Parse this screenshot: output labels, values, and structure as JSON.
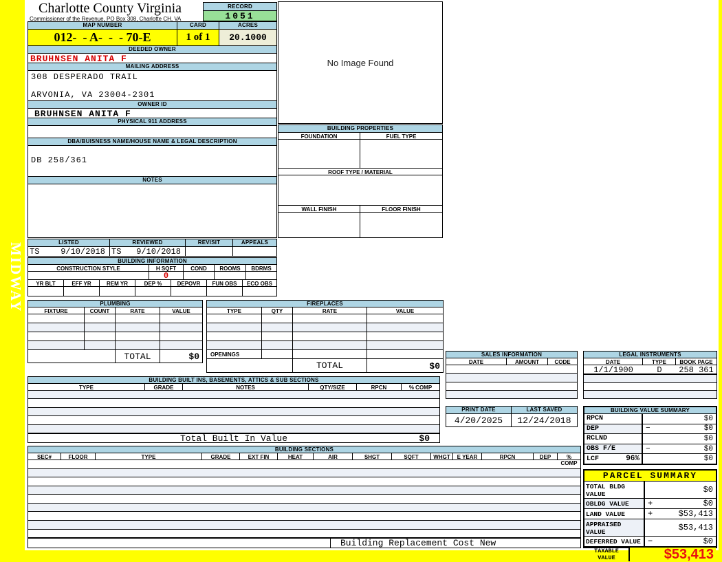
{
  "colors": {
    "header_blue": "#aed5e4",
    "record_green": "#98e098",
    "highlight_yellow": "#ffff00",
    "acres_cream": "#eeeed8",
    "alt_row": "#edf1f7",
    "owner_red": "#d40000",
    "taxable_red": "#e81111"
  },
  "page": {
    "watermark": "MIDWAY"
  },
  "header": {
    "county": "Charlotte County Virginia",
    "subtitle": "Commissioner of the Revenue, PO Box 308, Charlotte CH, VA",
    "record_label": "RECORD",
    "record_value": "1051",
    "map_number_label": "MAP NUMBER",
    "map_number_value": "012-  - A-  -  - 70-E",
    "card_label": "CARD",
    "card_value": "1 of 1",
    "acres_label": "ACRES",
    "acres_value": "20.1000"
  },
  "owner": {
    "deeded_owner_label": "DEEDED OWNER",
    "deeded_owner": "BRUHNSEN ANITA F",
    "mailing_address_label": "MAILING ADDRESS",
    "mailing_line1": "308 DESPERADO TRAIL",
    "mailing_line2": "ARVONIA, VA 23004-2301",
    "owner_id_label": "OWNER ID",
    "owner_id": "BRUHNSEN ANITA F",
    "physical_address_label": "PHYSICAL 911 ADDRESS",
    "physical_address": ""
  },
  "legal_desc": {
    "dba_label": "DBA/BUISNESS NAME/HOUSE NAME & LEGAL DESCRIPTION",
    "dba_value": "DB 258/361",
    "notes_label": "NOTES",
    "notes_value": ""
  },
  "review": {
    "listed_label": "LISTED",
    "listed_by": "TS",
    "listed_date": "9/10/2018",
    "reviewed_label": "REVIEWED",
    "reviewed_by": "TS",
    "reviewed_date": "9/10/2018",
    "revisit_label": "REVISIT",
    "revisit_value": "",
    "appeals_label": "APPEALS",
    "appeals_value": ""
  },
  "building_information": {
    "title": "BUILDING INFORMATION",
    "col_headers": [
      "CONSTRUCTION STYLE",
      "H SQFT",
      "COND",
      "ROOMS",
      "BDRMS"
    ],
    "h_sqft_value": "0",
    "detail_headers": [
      "YR BLT",
      "EFF YR",
      "REM YR",
      "DEP %",
      "DEPOVR",
      "FUN OBS",
      "ECO OBS"
    ]
  },
  "plumbing": {
    "title": "PLUMBING",
    "headers": [
      "FIXTURE",
      "COUNT",
      "RATE",
      "VALUE"
    ],
    "total_label": "TOTAL",
    "total_value": "$0"
  },
  "fireplaces": {
    "title": "FIREPLACES",
    "headers": [
      "TYPE",
      "QTY",
      "RATE",
      "VALUE"
    ],
    "openings_label": "OPENINGS",
    "total_label": "TOTAL",
    "total_value": "$0"
  },
  "built_ins": {
    "title": "BUILDING BUILT INS, BASEMENTS, ATTICS & SUB SECTIONS",
    "headers": [
      "TYPE",
      "GRADE",
      "NOTES",
      "QTY/SIZE",
      "RPCN",
      "% COMP"
    ],
    "total_label": "Total Built In Value",
    "total_value": "$0"
  },
  "building_sections": {
    "title": "BUILDING SECTIONS",
    "headers": [
      "SEC#",
      "FLOOR",
      "TYPE",
      "GRADE",
      "EXT FIN",
      "HEAT",
      "AIR",
      "SHGT",
      "SQFT",
      "WHGT",
      "E YEAR",
      "RPCN",
      "DEP",
      "% COMP"
    ],
    "footer_label": "Building Replacement Cost New"
  },
  "image_panel": {
    "placeholder": "No Image Found"
  },
  "building_properties": {
    "title": "BUILDING PROPERTIES",
    "foundation_label": "FOUNDATION",
    "fuel_type_label": "FUEL TYPE",
    "roof_label": "ROOF TYPE / MATERIAL",
    "wall_finish_label": "WALL FINISH",
    "floor_finish_label": "FLOOR FINISH"
  },
  "sales_information": {
    "title": "SALES INFORMATION",
    "headers": [
      "DATE",
      "AMOUNT",
      "CODE"
    ]
  },
  "legal_instruments": {
    "title": "LEGAL INSTRUMENTS",
    "headers": [
      "DATE",
      "TYPE",
      "BOOK PAGE"
    ],
    "rows": [
      [
        "1/1/1900",
        "D",
        "258 361"
      ]
    ]
  },
  "dates": {
    "print_date_label": "PRINT DATE",
    "print_date_value": "4/20/2025",
    "last_saved_label": "LAST SAVED",
    "last_saved_value": "12/24/2018"
  },
  "building_value_summary": {
    "title": "BUILDING VALUE SUMMARY",
    "rows": [
      {
        "label": "RPCN",
        "pct": "",
        "op": "",
        "value": "$0"
      },
      {
        "label": "DEP",
        "pct": "",
        "op": "−",
        "value": "$0"
      },
      {
        "label": "RCLND",
        "pct": "",
        "op": "",
        "value": "$0"
      },
      {
        "label": "OBS F/E",
        "pct": "",
        "op": "−",
        "value": "$0"
      },
      {
        "label": "LCF",
        "pct": "96%",
        "op": "",
        "value": "$0"
      }
    ]
  },
  "parcel_summary": {
    "title": "PARCEL SUMMARY",
    "rows": [
      {
        "label": "TOTAL BLDG VALUE",
        "op": "",
        "value": "$0"
      },
      {
        "label": "OBLDG VALUE",
        "op": "+",
        "value": "$0"
      },
      {
        "label": "LAND VALUE",
        "op": "+",
        "value": "$53,413"
      },
      {
        "label": "APPRAISED VALUE",
        "op": "",
        "value": "$53,413"
      },
      {
        "label": "DEFERRED VALUE",
        "op": "−",
        "value": "$0"
      }
    ],
    "taxable_label": "TAXABLE VALUE",
    "taxable_value": "$53,413"
  }
}
